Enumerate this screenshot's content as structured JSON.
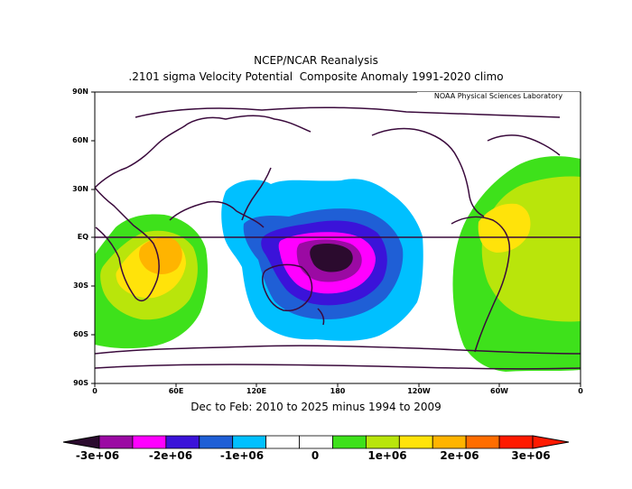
{
  "header": {
    "title": "NCEP/NCAR Reanalysis",
    "subtitle": ".2101 sigma Velocity Potential  Composite Anomaly 1991-2020 climo",
    "credit": "NOAA Physical Sciences Laboratory"
  },
  "period": "Dec to Feb: 2010 to 2025 minus 1994 to 2009",
  "axes": {
    "lat_labels": [
      "90N",
      "60N",
      "30N",
      "EQ",
      "30S",
      "60S",
      "90S"
    ],
    "lon_labels": [
      "0",
      "60E",
      "120E",
      "180",
      "120W",
      "60W",
      "0"
    ]
  },
  "colorbar": {
    "labels": [
      "-3e+06",
      "-2e+06",
      "-1e+06",
      "0",
      "1e+06",
      "2e+06",
      "3e+06"
    ],
    "colors": [
      "#9b0aa3",
      "#ff00ff",
      "#3b13d9",
      "#1f5fd6",
      "#00c0ff",
      "#ffffff",
      "#ffffff",
      "#3ee11b",
      "#b9e50b",
      "#ffe30a",
      "#ffb400",
      "#ff6d00",
      "#ff1a00"
    ],
    "low_end_color": "#2b0b2e",
    "high_end_color": "#ff1a00"
  },
  "colors": {
    "coast": "#3a0a3c",
    "equator": "#3a0a3c"
  }
}
